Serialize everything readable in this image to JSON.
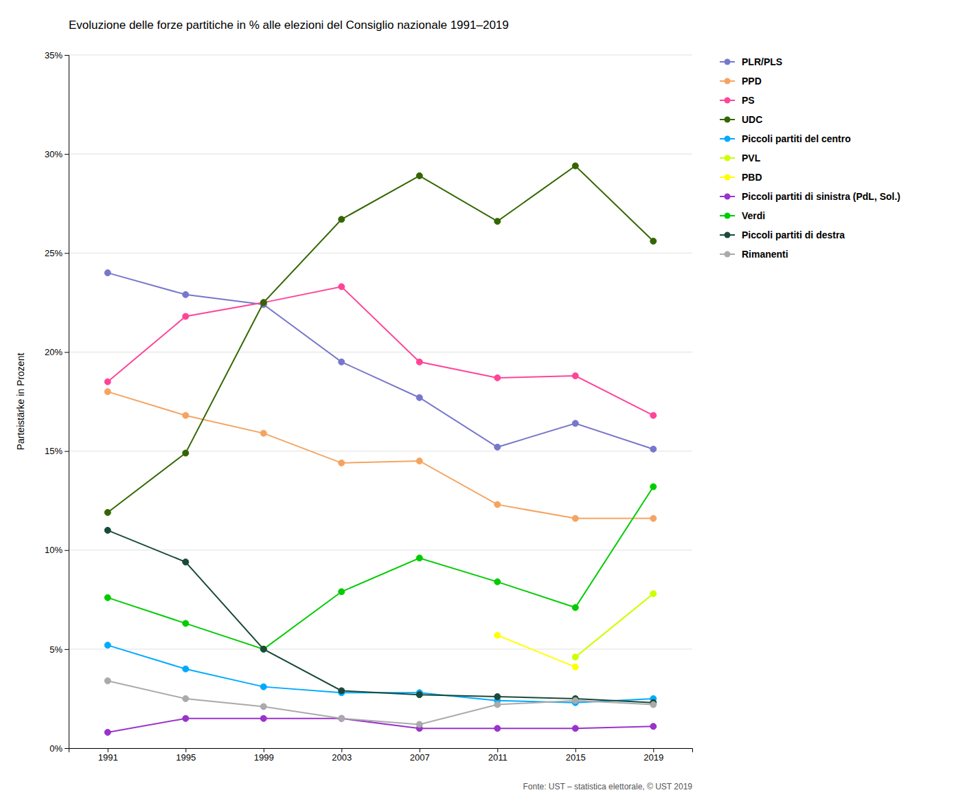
{
  "chart_data": {
    "type": "line",
    "title": "Evoluzione delle forze partitiche in % alle elezioni del Consiglio nazionale 1991–2019",
    "ylabel": "Parteistärke in Prozent",
    "footnote": "Fonte: UST – statistica elettorale, © UST 2019",
    "x": [
      1991,
      1995,
      1999,
      2003,
      2007,
      2011,
      2015,
      2019
    ],
    "xlim": [
      1989,
      2021
    ],
    "xticks": [
      1991,
      1995,
      1999,
      2003,
      2007,
      2011,
      2015,
      2019
    ],
    "ylim": [
      0,
      35
    ],
    "yticks": [
      {
        "value": 0,
        "label": "0%"
      },
      {
        "value": 5,
        "label": "5%"
      },
      {
        "value": 10,
        "label": "10%"
      },
      {
        "value": 15,
        "label": "15%"
      },
      {
        "value": 20,
        "label": "20%"
      },
      {
        "value": 25,
        "label": "25%"
      },
      {
        "value": 30,
        "label": "30%"
      },
      {
        "value": 35,
        "label": "35%"
      }
    ],
    "grid": true,
    "legend": "right",
    "marker": "circle",
    "series": [
      {
        "name": "PLR/PLS",
        "color": "#7777cc",
        "values": [
          24.0,
          22.9,
          22.4,
          19.5,
          17.7,
          15.2,
          16.4,
          15.1
        ]
      },
      {
        "name": "PPD",
        "color": "#f4a460",
        "values": [
          18.0,
          16.8,
          15.9,
          14.4,
          14.5,
          12.3,
          11.6,
          11.6
        ]
      },
      {
        "name": "PS",
        "color": "#ff4499",
        "values": [
          18.5,
          21.8,
          22.5,
          23.3,
          19.5,
          18.7,
          18.8,
          16.8
        ]
      },
      {
        "name": "UDC",
        "color": "#336600",
        "values": [
          11.9,
          14.9,
          22.5,
          26.7,
          28.9,
          26.6,
          29.4,
          25.6
        ]
      },
      {
        "name": "Piccoli partiti del centro",
        "color": "#00aaff",
        "values": [
          5.2,
          4.0,
          3.1,
          2.8,
          2.8,
          2.4,
          2.3,
          2.5
        ]
      },
      {
        "name": "PVL",
        "color": "#ccff00",
        "values": [
          null,
          null,
          null,
          null,
          null,
          null,
          4.6,
          7.8
        ]
      },
      {
        "name": "PBD",
        "color": "#ffff00",
        "values": [
          null,
          null,
          null,
          null,
          null,
          5.7,
          4.1,
          null
        ]
      },
      {
        "name": "Piccoli partiti di sinistra (PdL, Sol.)",
        "color": "#9933cc",
        "values": [
          0.8,
          1.5,
          1.5,
          1.5,
          1.0,
          1.0,
          1.0,
          1.1
        ]
      },
      {
        "name": "Verdi",
        "color": "#00cc00",
        "values": [
          7.6,
          6.3,
          5.0,
          7.9,
          9.6,
          8.4,
          7.1,
          13.2
        ]
      },
      {
        "name": "Piccoli partiti di destra",
        "color": "#1a4a3a",
        "values": [
          11.0,
          9.4,
          5.0,
          2.9,
          2.7,
          2.6,
          2.5,
          2.3
        ]
      },
      {
        "name": "Rimanenti",
        "color": "#aaaaaa",
        "values": [
          3.4,
          2.5,
          2.1,
          1.5,
          1.2,
          2.2,
          2.4,
          2.2
        ]
      }
    ]
  }
}
